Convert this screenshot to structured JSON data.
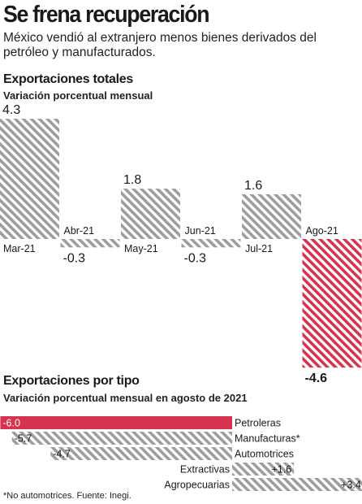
{
  "header": {
    "title": "Se frena recuperación",
    "subtitle": "México vendió al extranjero menos bienes derivados del petróleo y manufacturados."
  },
  "section1": {
    "title": "Exportaciones totales",
    "subtitle": "Variación porcentual mensual"
  },
  "section2": {
    "title": "Exportaciones por tipo",
    "subtitle": "Variación porcentual mensual en agosto de 2021"
  },
  "footnote": "*No automotrices. Fuente: Inegi.",
  "colors": {
    "stripe_gray": "#9d9d9d",
    "highlight_red": "#d6344e",
    "text": "#1a1a1a"
  },
  "chart_data": [
    {
      "type": "bar",
      "categories": [
        "Mar-21",
        "Abr-21",
        "May-21",
        "Jun-21",
        "Jul-21",
        "Ago-21"
      ],
      "values": [
        4.3,
        -0.3,
        1.8,
        -0.3,
        1.6,
        -4.6
      ],
      "value_labels": [
        "4.3",
        "-0.3",
        "1.8",
        "-0.3",
        "1.6",
        "-4.6"
      ],
      "highlight_index": 5,
      "title": "Exportaciones totales",
      "subtitle": "Variación porcentual mensual",
      "grid": false
    },
    {
      "type": "bar",
      "orientation": "horizontal",
      "categories": [
        "Petroleras",
        "Manufacturas*",
        "Automotrices",
        "Extractivas",
        "Agropecuarias"
      ],
      "values": [
        -6.0,
        -5.7,
        -4.7,
        1.6,
        3.4
      ],
      "value_labels": [
        "-6.0",
        "-5.7",
        "-4.7",
        "+1.6",
        "+3.4"
      ],
      "highlight_index": 0,
      "title": "Exportaciones por tipo",
      "subtitle": "Variación porcentual mensual en agosto de 2021",
      "grid": false
    }
  ]
}
